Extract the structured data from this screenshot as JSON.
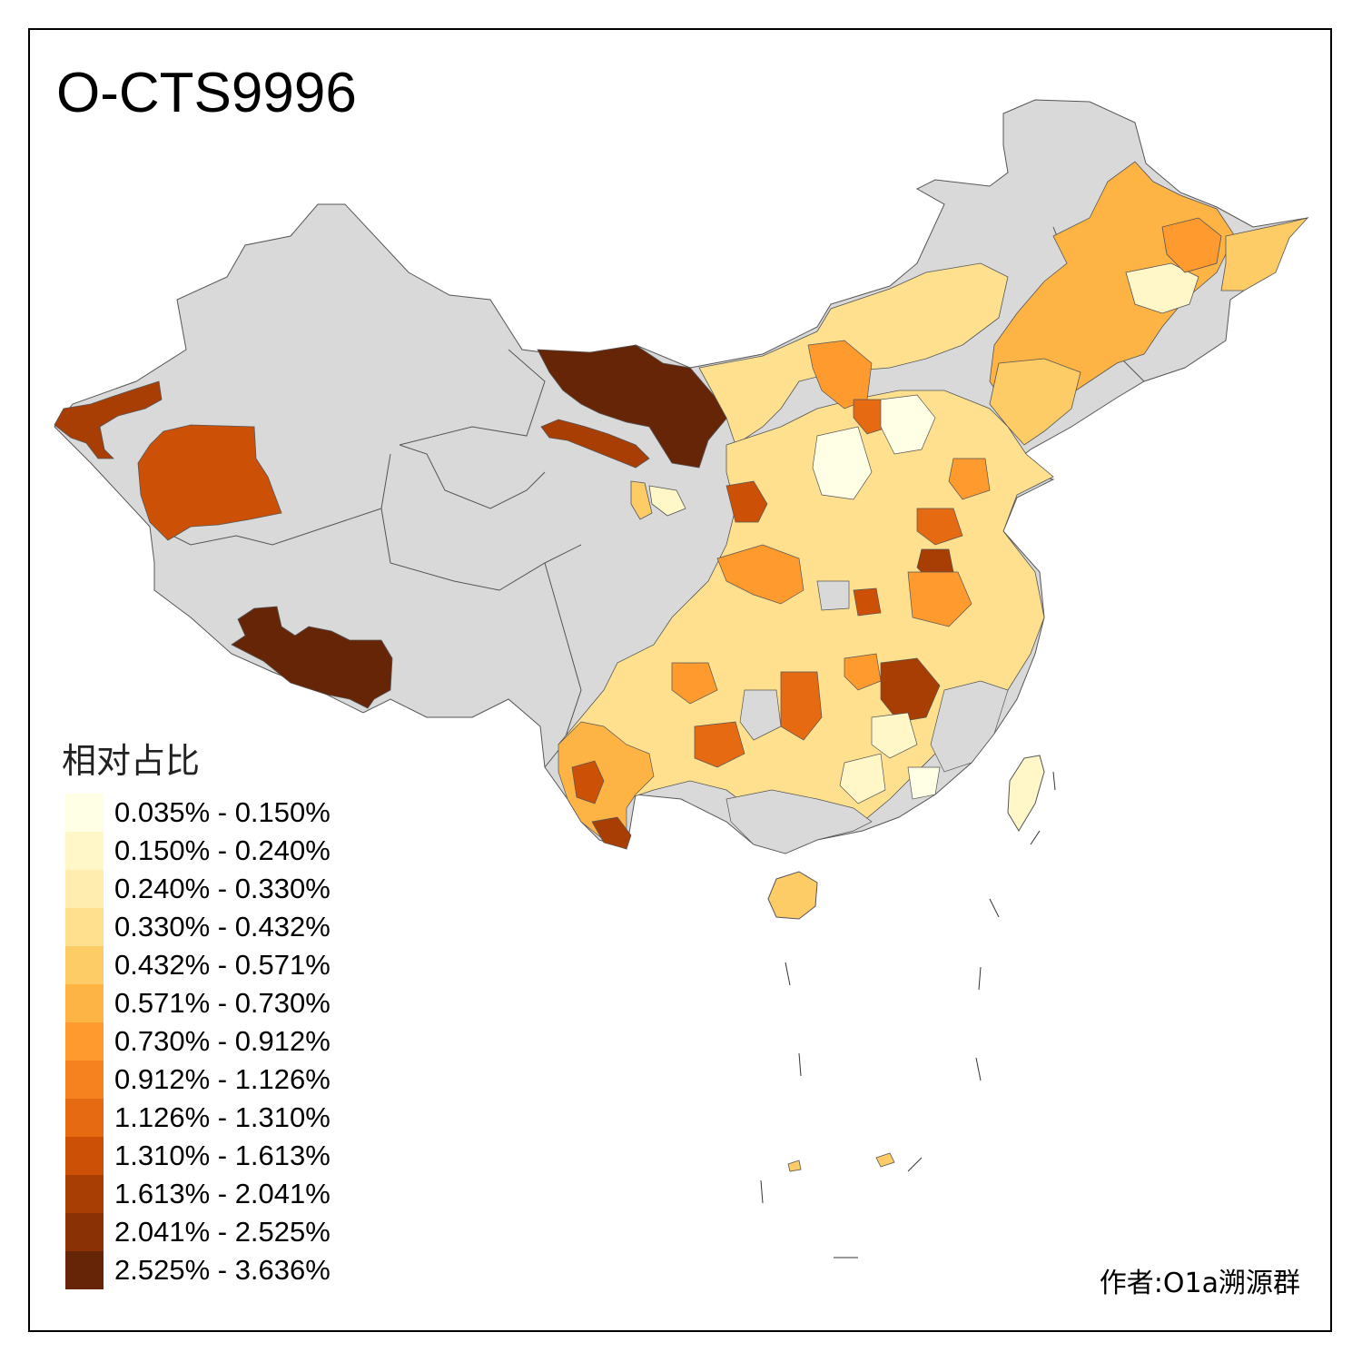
{
  "title": "O-CTS9996",
  "legend": {
    "title": "相对占比",
    "items": [
      {
        "label": "0.035% - 0.150%",
        "color": "#FFFFE5"
      },
      {
        "label": "0.150% - 0.240%",
        "color": "#FFF7C8"
      },
      {
        "label": "0.240% - 0.330%",
        "color": "#FFEDB0"
      },
      {
        "label": "0.330% - 0.432%",
        "color": "#FEE08E"
      },
      {
        "label": "0.432% - 0.571%",
        "color": "#FECC66"
      },
      {
        "label": "0.571% - 0.730%",
        "color": "#FEB345"
      },
      {
        "label": "0.730% - 0.912%",
        "color": "#FE9A2E"
      },
      {
        "label": "0.912% - 1.126%",
        "color": "#F5821F"
      },
      {
        "label": "1.126% - 1.310%",
        "color": "#E56A12"
      },
      {
        "label": "1.310% - 1.613%",
        "color": "#CC5006"
      },
      {
        "label": "1.613% - 2.041%",
        "color": "#A93E04"
      },
      {
        "label": "2.041% - 2.525%",
        "color": "#8A3205"
      },
      {
        "label": "2.525% - 3.636%",
        "color": "#662506"
      }
    ]
  },
  "credit": "作者:O1a溯源群",
  "colors": {
    "no_data": "#D9D9D9",
    "border": "#555555"
  }
}
